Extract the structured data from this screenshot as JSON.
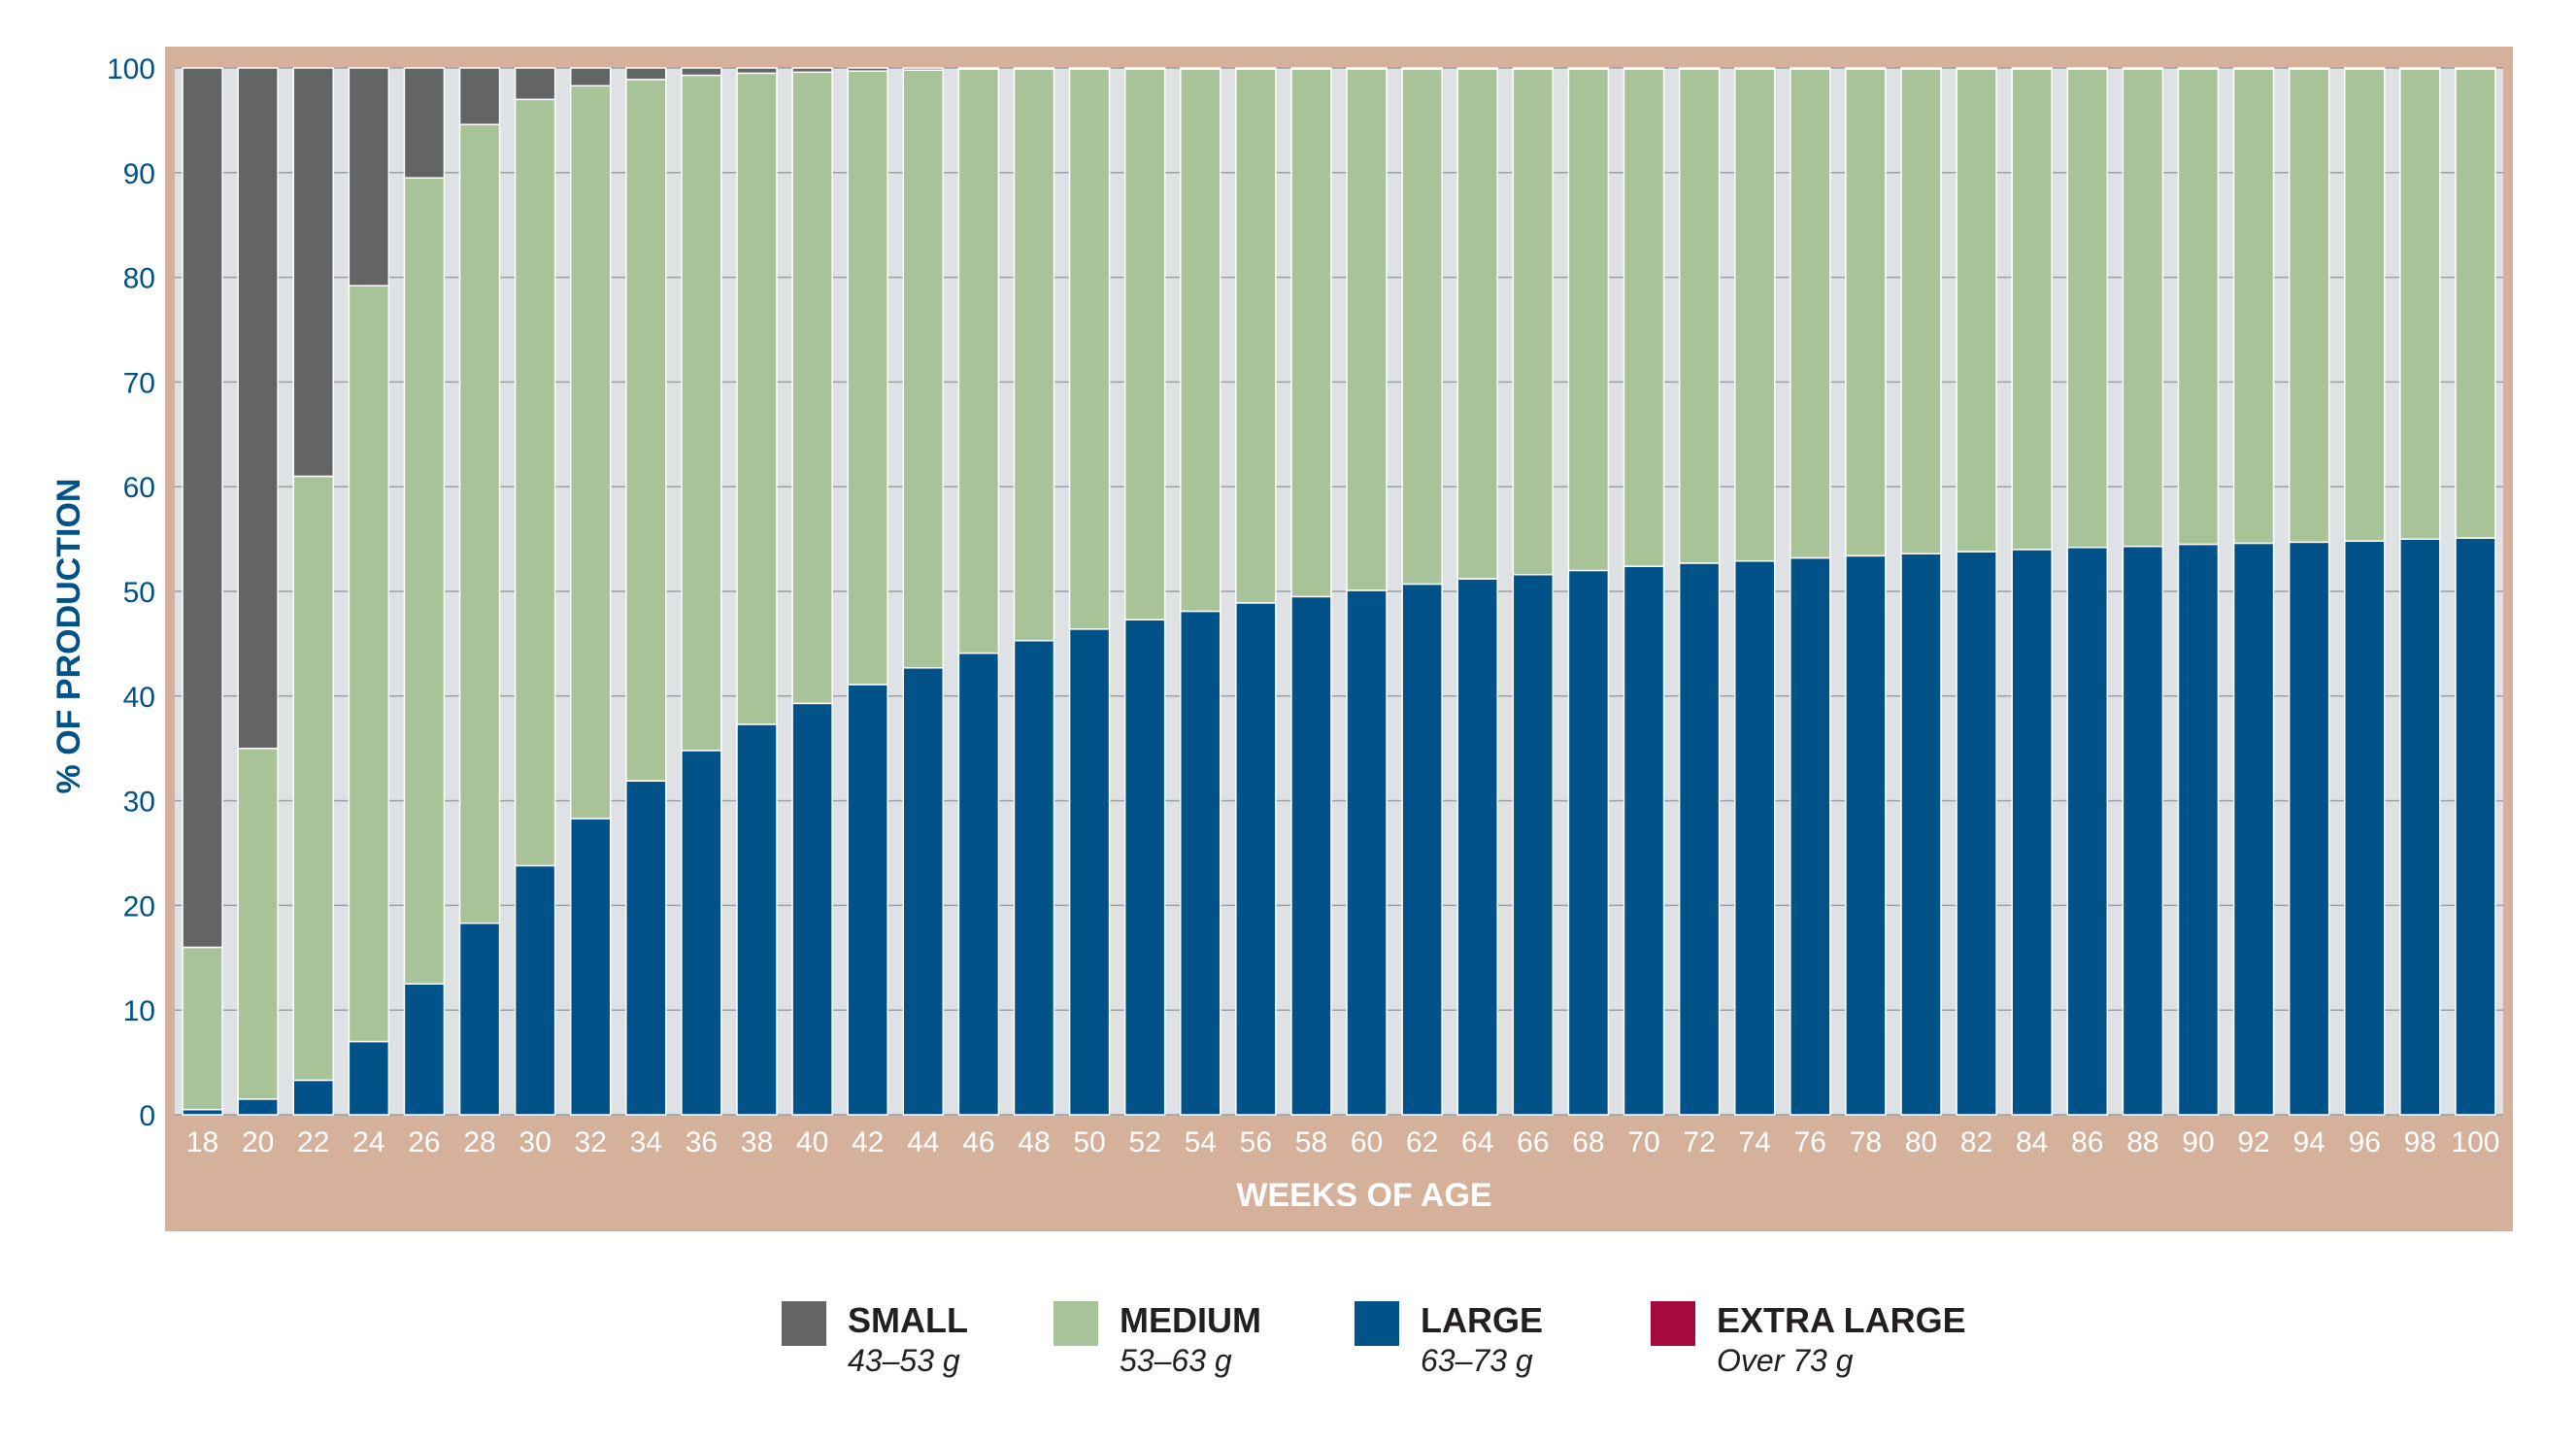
{
  "chart_data": {
    "type": "bar",
    "stacked": true,
    "ylabel": "% OF PRODUCTION",
    "xlabel": "WEEKS OF AGE",
    "ylim": [
      0,
      100
    ],
    "yticks": [
      0,
      10,
      20,
      30,
      40,
      50,
      60,
      70,
      80,
      90,
      100
    ],
    "categories": [
      "18",
      "20",
      "22",
      "24",
      "26",
      "28",
      "30",
      "32",
      "34",
      "36",
      "38",
      "40",
      "42",
      "44",
      "46",
      "48",
      "50",
      "52",
      "54",
      "56",
      "58",
      "60",
      "62",
      "64",
      "66",
      "68",
      "70",
      "72",
      "74",
      "76",
      "78",
      "80",
      "82",
      "84",
      "86",
      "88",
      "90",
      "92",
      "94",
      "96",
      "98",
      "100"
    ],
    "series": [
      {
        "name": "EXTRA LARGE",
        "sublabel": "Over 73 g",
        "color": "#a6093d",
        "values": [
          0,
          0,
          0,
          0,
          0,
          0,
          0,
          0,
          0,
          0,
          0,
          0,
          0,
          0,
          0,
          0,
          0,
          0,
          0,
          0,
          0,
          0,
          0,
          0,
          0,
          0,
          0,
          0,
          0,
          0,
          0,
          0,
          0,
          0,
          0,
          0,
          0,
          0,
          0,
          0,
          0,
          0
        ]
      },
      {
        "name": "LARGE",
        "sublabel": "63–73 g",
        "color": "#005288",
        "values": [
          0.5,
          1.5,
          3.3,
          7,
          12.5,
          18.3,
          23.8,
          28.3,
          31.9,
          34.8,
          37.3,
          39.3,
          41.1,
          42.7,
          44.1,
          45.3,
          46.4,
          47.3,
          48.1,
          48.9,
          49.5,
          50.1,
          50.7,
          51.2,
          51.6,
          52,
          52.4,
          52.7,
          52.9,
          53.2,
          53.4,
          53.6,
          53.8,
          54,
          54.2,
          54.3,
          54.5,
          54.6,
          54.7,
          54.8,
          55,
          55.1
        ]
      },
      {
        "name": "MEDIUM",
        "sublabel": "53–63 g",
        "color": "#a9c398",
        "values": [
          15.5,
          33.5,
          57.7,
          72.2,
          77,
          76.3,
          73.2,
          70,
          67,
          64.5,
          62.2,
          60.3,
          58.6,
          57.1,
          55.8,
          54.6,
          53.5,
          52.6,
          51.8,
          51,
          50.4,
          49.8,
          49.2,
          48.7,
          48.3,
          47.9,
          47.5,
          47.2,
          47,
          46.7,
          46.5,
          46.3,
          46.1,
          45.9,
          45.7,
          45.6,
          45.4,
          45.3,
          45.2,
          45.1,
          44.9,
          44.8
        ]
      },
      {
        "name": "SMALL",
        "sublabel": "43–53 g",
        "color": "#636466",
        "values": [
          84,
          65,
          39,
          20.8,
          10.5,
          5.4,
          3,
          1.7,
          1.1,
          0.7,
          0.5,
          0.4,
          0.3,
          0.2,
          0.1,
          0.1,
          0.1,
          0.1,
          0.1,
          0.1,
          0.1,
          0.1,
          0.1,
          0.1,
          0.1,
          0.1,
          0.1,
          0.1,
          0.1,
          0.1,
          0.1,
          0.1,
          0.1,
          0.1,
          0.1,
          0.1,
          0.1,
          0.1,
          0.1,
          0.1,
          0.1,
          0.1
        ]
      }
    ],
    "legend_position": "bottom"
  },
  "colors": {
    "frame": "#d5b09b",
    "plot_bg": "#dfe2e4",
    "axis_text": "#005288",
    "x_text": "#ffffff"
  },
  "legend": [
    {
      "label": "SMALL",
      "sublabel": "43–53 g",
      "color": "#636466"
    },
    {
      "label": "MEDIUM",
      "sublabel": "53–63 g",
      "color": "#a9c398"
    },
    {
      "label": "LARGE",
      "sublabel": "63–73 g",
      "color": "#005288"
    },
    {
      "label": "EXTRA LARGE",
      "sublabel": "Over 73 g",
      "color": "#a6093d"
    }
  ]
}
